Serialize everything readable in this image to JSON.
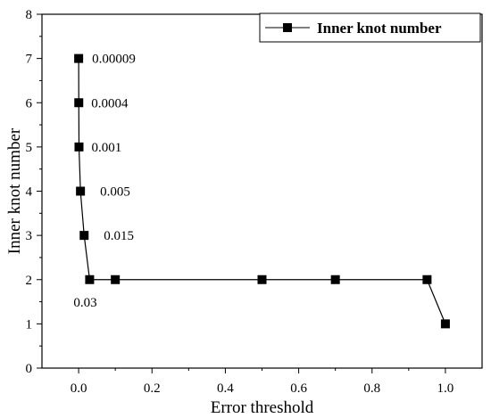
{
  "chart_data": {
    "type": "line",
    "title": "",
    "xlabel": "Error threshold",
    "ylabel": "Inner knot number",
    "xlim": [
      -0.1,
      1.1
    ],
    "ylim": [
      0,
      8
    ],
    "x_ticks": [
      "0.0",
      "0.2",
      "0.4",
      "0.6",
      "0.8",
      "1.0"
    ],
    "x_tick_values": [
      0.0,
      0.2,
      0.4,
      0.6,
      0.8,
      1.0
    ],
    "y_ticks": [
      "0",
      "1",
      "2",
      "3",
      "4",
      "5",
      "6",
      "7",
      "8"
    ],
    "y_tick_values": [
      0,
      1,
      2,
      3,
      4,
      5,
      6,
      7,
      8
    ],
    "grid": false,
    "legend_position": "top-right",
    "series": [
      {
        "name": "Inner knot number",
        "marker": "square",
        "color": "#000000",
        "x": [
          9e-05,
          0.0004,
          0.001,
          0.005,
          0.015,
          0.03,
          0.1,
          0.5,
          0.7,
          0.95,
          1.0
        ],
        "y": [
          7,
          6,
          5,
          4,
          3,
          2,
          2,
          2,
          2,
          2,
          1
        ]
      }
    ],
    "annotations": [
      {
        "text": "0.00009",
        "x": 9e-05,
        "y": 7
      },
      {
        "text": "0.0004",
        "x": 0.0004,
        "y": 6
      },
      {
        "text": "0.001",
        "x": 0.001,
        "y": 5
      },
      {
        "text": "0.005",
        "x": 0.005,
        "y": 4
      },
      {
        "text": "0.015",
        "x": 0.015,
        "y": 3
      },
      {
        "text": "0.03",
        "x": 0.03,
        "y": 2
      }
    ]
  }
}
